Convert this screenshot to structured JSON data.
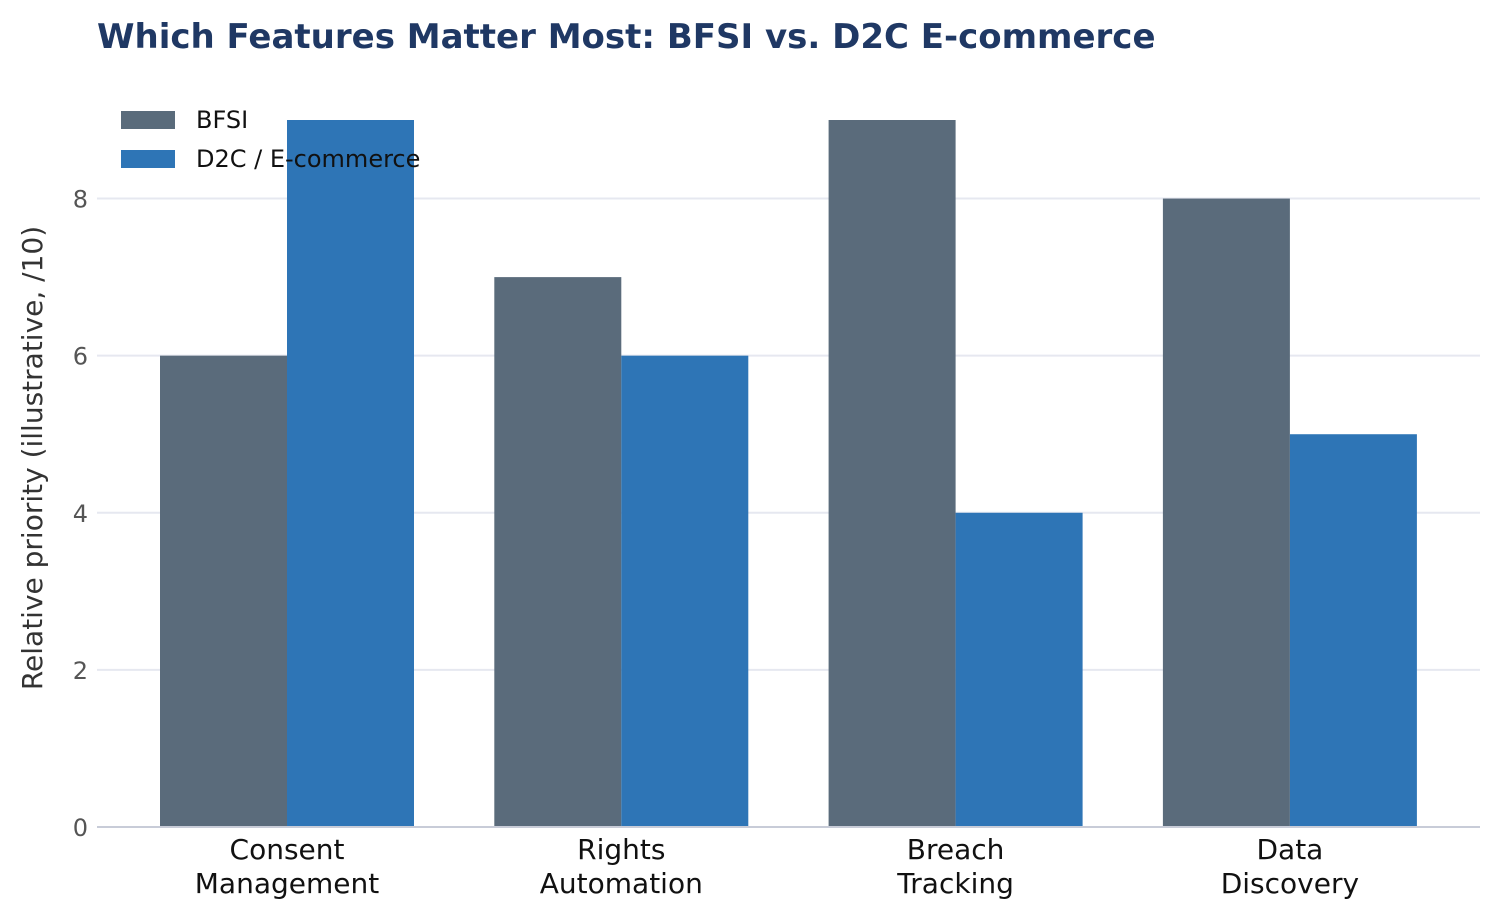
{
  "chart_data": {
    "type": "bar",
    "title": "Which Features Matter Most: BFSI vs. D2C E-commerce",
    "xlabel": "",
    "ylabel": "Relative priority (illustrative, /10)",
    "categories": [
      [
        "Consent",
        "Management"
      ],
      [
        "Rights",
        "Automation"
      ],
      [
        "Breach",
        "Tracking"
      ],
      [
        "Data",
        "Discovery"
      ]
    ],
    "series": [
      {
        "name": "BFSI",
        "values": [
          6,
          7,
          9,
          8
        ],
        "color": "#5a6b7b"
      },
      {
        "name": "D2C / E-commerce",
        "values": [
          9,
          6,
          4,
          5
        ],
        "color": "#2e75b6"
      }
    ],
    "ylim": [
      0,
      9
    ],
    "yticks": [
      0,
      2,
      4,
      6,
      8
    ],
    "grid": "y",
    "legend_position": "top-left",
    "colors": {
      "title": "#1f3864",
      "grid": "#e6e8f0",
      "axis": "#c8ccd8"
    }
  }
}
